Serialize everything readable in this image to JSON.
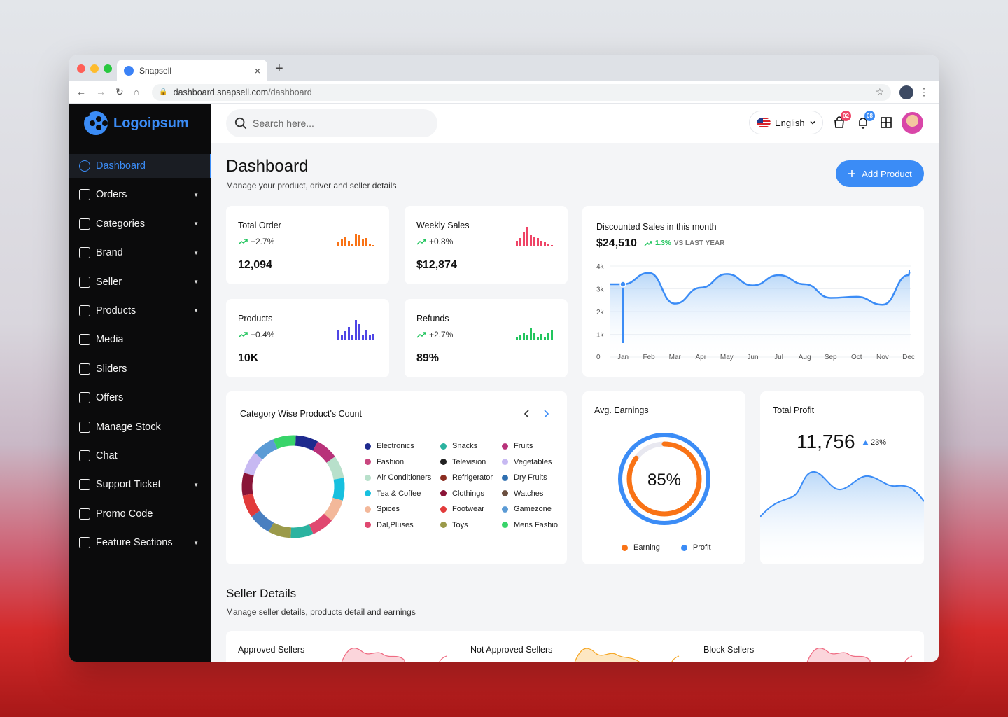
{
  "browser": {
    "tab_title": "Snapsell",
    "tab_close": "×",
    "new_tab": "+",
    "url_host": "dashboard.snapsell.com",
    "url_path": "/dashboard"
  },
  "logo": {
    "text": "Logoipsum"
  },
  "sidebar": {
    "items": [
      {
        "label": "Dashboard",
        "active": true,
        "icon": "dashboard-icon"
      },
      {
        "label": "Orders",
        "chevron": true,
        "icon": "orders-icon"
      },
      {
        "label": "Categories",
        "chevron": true,
        "icon": "categories-icon"
      },
      {
        "label": "Brand",
        "chevron": true,
        "icon": "brand-icon"
      },
      {
        "label": "Seller",
        "chevron": true,
        "icon": "seller-icon"
      },
      {
        "label": "Products",
        "chevron": true,
        "icon": "products-icon"
      },
      {
        "label": "Media",
        "icon": "media-icon"
      },
      {
        "label": "Sliders",
        "icon": "sliders-icon"
      },
      {
        "label": "Offers",
        "icon": "offers-icon"
      },
      {
        "label": "Manage Stock",
        "icon": "stock-icon"
      },
      {
        "label": "Chat",
        "icon": "chat-icon"
      },
      {
        "label": "Support Ticket",
        "chevron": true,
        "icon": "ticket-icon"
      },
      {
        "label": "Promo Code",
        "icon": "promo-icon"
      },
      {
        "label": "Feature Sections",
        "chevron": true,
        "icon": "feature-icon"
      }
    ]
  },
  "topbar": {
    "search_placeholder": "Search here...",
    "language": "English",
    "orders_badge": "02",
    "notifications_badge": "08"
  },
  "header": {
    "title": "Dashboard",
    "subtitle": "Manage your product, driver and seller details",
    "add_button": "Add Product"
  },
  "stats": [
    {
      "title": "Total Order",
      "delta": "+2.7%",
      "value": "12,094",
      "color": "#f97316"
    },
    {
      "title": "Weekly Sales",
      "delta": "+0.8%",
      "value": "$12,874",
      "color": "#ef4466"
    },
    {
      "title": "Products",
      "delta": "+0.4%",
      "value": "10K",
      "color": "#4f46e5"
    },
    {
      "title": "Refunds",
      "delta": "+2.7%",
      "value": "89%",
      "color": "#22c55e"
    }
  ],
  "discounted": {
    "title": "Discounted  Sales in this month",
    "value": "$24,510",
    "delta": "1.3%",
    "vs": "VS LAST YEAR"
  },
  "chart_data": [
    {
      "type": "area",
      "title": "Discounted  Sales in this month",
      "x": [
        "Jan",
        "Feb",
        "Mar",
        "Apr",
        "May",
        "Jun",
        "Jul",
        "Aug",
        "Sep",
        "Oct",
        "Nov",
        "Dec"
      ],
      "y_ticks": [
        "0",
        "1k",
        "2k",
        "3k",
        "4k"
      ],
      "ylim": [
        0,
        4000
      ],
      "series": [
        {
          "values": [
            3200,
            3700,
            2350,
            3050,
            3650,
            3150,
            3600,
            3200,
            2600,
            2650,
            2300,
            3600
          ]
        }
      ],
      "highlight_index": 0
    },
    {
      "type": "pie",
      "title": "Category Wise Product's Count",
      "categories": [
        "Electronics",
        "Snacks",
        "Fruits",
        "Fashion",
        "Television",
        "Vegetables",
        "Air Conditioners",
        "Refrigerator",
        "Dry Fruits",
        "Tea & Coffee",
        "Clothings",
        "Watches",
        "Spices",
        "Footwear",
        "Gamezone",
        "Dal,Pluses",
        "Toys",
        "Mens Fashion"
      ],
      "colors": [
        "#1e2a8e",
        "#2bb3a0",
        "#b8327a",
        "#c9477f",
        "#222222",
        "#c7b9f2",
        "#b8e0cb",
        "#8b2d20",
        "#2f6fb0",
        "#17c0df",
        "#8a1538",
        "#6b4f3f",
        "#f3b89a",
        "#e23b3b",
        "#5b9bd5",
        "#e04870",
        "#9b9a4a",
        "#38d46a"
      ]
    },
    {
      "type": "pie",
      "title": "Avg. Earnings",
      "center_label": "85%",
      "series": [
        {
          "name": "Earning",
          "values": [
            85
          ]
        },
        {
          "name": "Profit",
          "values": [
            100
          ]
        }
      ]
    },
    {
      "type": "area",
      "title": "Total Profit",
      "value": "11,756",
      "delta": "23%"
    }
  ],
  "category": {
    "title": "Category Wise Product's Count",
    "legend": [
      {
        "label": "Electronics",
        "color": "#1e2a8e"
      },
      {
        "label": "Snacks",
        "color": "#2bb3a0"
      },
      {
        "label": "Fruits",
        "color": "#b8327a"
      },
      {
        "label": "Fashion",
        "color": "#c9477f"
      },
      {
        "label": "Television",
        "color": "#222222"
      },
      {
        "label": "Vegetables",
        "color": "#c7b9f2"
      },
      {
        "label": "Air Conditioners",
        "color": "#b8e0cb"
      },
      {
        "label": "Refrigerator",
        "color": "#8b2d20"
      },
      {
        "label": "Dry Fruits",
        "color": "#2f6fb0"
      },
      {
        "label": "Tea & Coffee",
        "color": "#17c0df"
      },
      {
        "label": "Clothings",
        "color": "#8a1538"
      },
      {
        "label": "Watches",
        "color": "#6b4f3f"
      },
      {
        "label": "Spices",
        "color": "#f3b89a"
      },
      {
        "label": "Footwear",
        "color": "#e23b3b"
      },
      {
        "label": "Gamezone",
        "color": "#5b9bd5"
      },
      {
        "label": "Dal,Pluses",
        "color": "#e04870"
      },
      {
        "label": "Toys",
        "color": "#9b9a4a"
      },
      {
        "label": "Mens Fashion",
        "color": "#38d46a"
      }
    ]
  },
  "earnings": {
    "title": "Avg. Earnings",
    "percent": "85%",
    "legend_earning": "Earning",
    "legend_profit": "Profit",
    "earning_color": "#f97316",
    "profit_color": "#3b8cf6"
  },
  "profit": {
    "title": "Total Profit",
    "value": "11,756",
    "delta": "23%"
  },
  "seller": {
    "title": "Seller Details",
    "subtitle": "Manage seller details, products detail and earnings",
    "cards": [
      "Approved Sellers",
      "Not Approved Sellers",
      "Block Sellers"
    ]
  },
  "colors": {
    "accent": "#3b8cf6",
    "sidebar_bg": "#0b0b0c"
  }
}
